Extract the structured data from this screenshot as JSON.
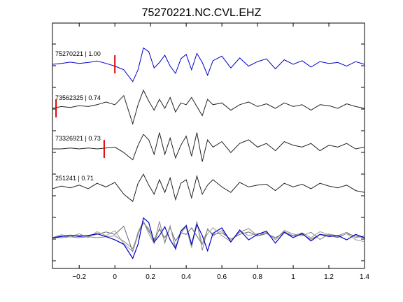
{
  "chart_data": {
    "type": "line",
    "title": "75270221.NC.CVL.EHZ",
    "xlabel": "",
    "ylabel": "",
    "xlim": [
      -0.35,
      1.4
    ],
    "x_ticks": [
      -0.2,
      0,
      0.2,
      0.4,
      0.6,
      0.8,
      1,
      1.2,
      1.4
    ],
    "x_tick_labels": [
      "−0.2",
      "0",
      "0.2",
      "0.4",
      "0.6",
      "0.8",
      "1",
      "1.2",
      "1.4"
    ],
    "grid": false,
    "series": [
      {
        "label": "75270221 | 1.00",
        "color": "#0000cc",
        "pick_time": 0.0,
        "x": [
          -0.35,
          -0.3,
          -0.25,
          -0.2,
          -0.15,
          -0.1,
          -0.05,
          0,
          0.05,
          0.1,
          0.13,
          0.16,
          0.19,
          0.22,
          0.25,
          0.28,
          0.31,
          0.34,
          0.37,
          0.4,
          0.43,
          0.46,
          0.49,
          0.52,
          0.55,
          0.6,
          0.65,
          0.7,
          0.75,
          0.8,
          0.85,
          0.9,
          0.95,
          1.0,
          1.05,
          1.1,
          1.15,
          1.2,
          1.25,
          1.3,
          1.35,
          1.4
        ],
        "y": [
          0.0,
          0.05,
          0.12,
          0.05,
          0.1,
          0.18,
          0.05,
          -0.1,
          -0.3,
          -0.95,
          -0.3,
          0.9,
          0.7,
          -0.2,
          0.1,
          0.5,
          -0.1,
          -0.5,
          0.3,
          0.55,
          -0.3,
          0.6,
          0.1,
          -0.6,
          0.2,
          0.45,
          -0.2,
          0.35,
          -0.1,
          0.15,
          0.3,
          -0.25,
          0.25,
          0.0,
          0.2,
          -0.15,
          0.15,
          0.05,
          0.1,
          -0.1,
          0.15,
          0.0
        ]
      },
      {
        "label": "73562325 | 0.74",
        "color": "#222222",
        "pick_time": -0.33,
        "x": [
          -0.35,
          -0.3,
          -0.25,
          -0.2,
          -0.15,
          -0.1,
          -0.05,
          0,
          0.05,
          0.1,
          0.13,
          0.16,
          0.19,
          0.22,
          0.25,
          0.28,
          0.31,
          0.34,
          0.37,
          0.4,
          0.43,
          0.46,
          0.49,
          0.52,
          0.55,
          0.6,
          0.65,
          0.7,
          0.75,
          0.8,
          0.85,
          0.9,
          0.95,
          1.0,
          1.05,
          1.1,
          1.15,
          1.2,
          1.25,
          1.3,
          1.35,
          1.4
        ],
        "y": [
          0.0,
          0.1,
          0.05,
          0.15,
          0.1,
          0.2,
          0.35,
          0.2,
          0.7,
          -0.85,
          0.2,
          1.0,
          0.4,
          -0.1,
          0.5,
          0.0,
          0.6,
          -0.2,
          0.3,
          0.2,
          0.6,
          0.1,
          -0.4,
          0.5,
          0.2,
          0.3,
          -0.1,
          0.2,
          0.35,
          0.1,
          0.25,
          0.0,
          0.3,
          0.1,
          0.2,
          -0.1,
          0.2,
          0.15,
          0.0,
          0.25,
          0.1,
          0.0
        ]
      },
      {
        "label": "73326921 | 0.73",
        "color": "#222222",
        "pick_time": -0.06,
        "x": [
          -0.35,
          -0.3,
          -0.25,
          -0.2,
          -0.15,
          -0.1,
          -0.05,
          0,
          0.05,
          0.1,
          0.13,
          0.16,
          0.19,
          0.22,
          0.25,
          0.28,
          0.31,
          0.34,
          0.37,
          0.4,
          0.43,
          0.46,
          0.49,
          0.52,
          0.55,
          0.6,
          0.65,
          0.7,
          0.75,
          0.8,
          0.85,
          0.9,
          0.95,
          1.0,
          1.05,
          1.1,
          1.15,
          1.2,
          1.25,
          1.3,
          1.35,
          1.4
        ],
        "y": [
          0.0,
          0.0,
          0.05,
          0.0,
          0.05,
          0.0,
          0.05,
          0.1,
          -0.2,
          -0.6,
          0.2,
          0.8,
          0.5,
          -0.3,
          0.9,
          -0.3,
          0.6,
          -0.5,
          0.2,
          0.7,
          -0.4,
          0.9,
          -0.7,
          0.5,
          0.1,
          0.4,
          -0.2,
          0.3,
          0.5,
          0.1,
          0.3,
          -0.1,
          0.4,
          0.2,
          0.1,
          0.3,
          -0.1,
          0.2,
          0.1,
          0.3,
          0.0,
          0.1
        ]
      },
      {
        "label": "251241 | 0.71",
        "color": "#222222",
        "pick_time": null,
        "x": [
          -0.35,
          -0.3,
          -0.25,
          -0.2,
          -0.15,
          -0.1,
          -0.05,
          0,
          0.05,
          0.1,
          0.13,
          0.16,
          0.19,
          0.22,
          0.25,
          0.28,
          0.31,
          0.34,
          0.37,
          0.4,
          0.43,
          0.46,
          0.49,
          0.52,
          0.55,
          0.6,
          0.65,
          0.7,
          0.75,
          0.8,
          0.85,
          0.9,
          0.95,
          1.0,
          1.05,
          1.1,
          1.15,
          1.2,
          1.25,
          1.3,
          1.35,
          1.4
        ],
        "y": [
          0.0,
          0.15,
          0.05,
          0.2,
          0.0,
          0.3,
          0.1,
          0.35,
          -0.3,
          -0.7,
          0.3,
          0.8,
          0.2,
          -0.3,
          0.5,
          -0.2,
          0.6,
          -0.6,
          0.3,
          0.5,
          -0.5,
          0.7,
          -0.3,
          0.2,
          0.5,
          0.1,
          -0.2,
          0.35,
          0.1,
          0.2,
          0.25,
          -0.1,
          0.3,
          0.1,
          0.25,
          0.0,
          0.3,
          0.15,
          0.05,
          0.2,
          -0.1,
          -0.2
        ]
      }
    ],
    "stack": {
      "description": "overlay of all traces",
      "series_colors": [
        "#0000cc",
        "#666666",
        "#888888",
        "#999999",
        "#777777"
      ]
    }
  }
}
